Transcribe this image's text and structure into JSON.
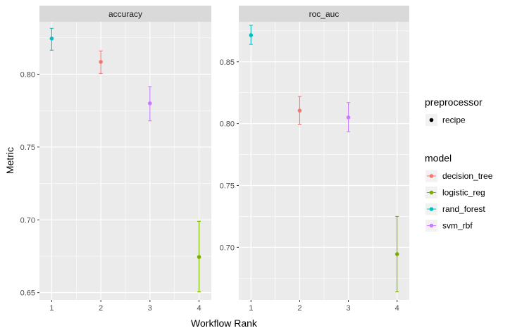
{
  "chart_data": {
    "type": "scatter",
    "xlabel": "Workflow Rank",
    "ylabel": "Metric",
    "facets": [
      {
        "name": "accuracy",
        "x_ticks": [
          "1",
          "2",
          "3",
          "4"
        ],
        "y_ticks": [
          "0.65",
          "0.70",
          "0.75",
          "0.80"
        ],
        "ylim": [
          0.645,
          0.836
        ],
        "points": [
          {
            "rank": 1,
            "model": "rand_forest",
            "mean": 0.8245,
            "lower": 0.8165,
            "upper": 0.8315
          },
          {
            "rank": 2,
            "model": "decision_tree",
            "mean": 0.8085,
            "lower": 0.8005,
            "upper": 0.816
          },
          {
            "rank": 3,
            "model": "svm_rbf",
            "mean": 0.78,
            "lower": 0.768,
            "upper": 0.7915
          },
          {
            "rank": 4,
            "model": "logistic_reg",
            "mean": 0.6745,
            "lower": 0.6505,
            "upper": 0.699
          }
        ]
      },
      {
        "name": "roc_auc",
        "x_ticks": [
          "1",
          "2",
          "3",
          "4"
        ],
        "y_ticks": [
          "0.70",
          "0.75",
          "0.80",
          "0.85"
        ],
        "ylim": [
          0.6575,
          0.8823
        ],
        "points": [
          {
            "rank": 1,
            "model": "rand_forest",
            "mean": 0.8715,
            "lower": 0.864,
            "upper": 0.8795
          },
          {
            "rank": 2,
            "model": "decision_tree",
            "mean": 0.8105,
            "lower": 0.7995,
            "upper": 0.822
          },
          {
            "rank": 3,
            "model": "svm_rbf",
            "mean": 0.805,
            "lower": 0.7935,
            "upper": 0.817
          },
          {
            "rank": 4,
            "model": "logistic_reg",
            "mean": 0.6945,
            "lower": 0.664,
            "upper": 0.725
          }
        ]
      }
    ],
    "xlim": [
      0.75,
      4.25
    ],
    "legends": [
      {
        "title": "preprocessor",
        "entries": [
          {
            "label": "recipe",
            "color": "#000000",
            "kind": "point"
          }
        ]
      },
      {
        "title": "model",
        "entries": [
          {
            "label": "decision_tree",
            "color": "#F8766D",
            "kind": "pointrange"
          },
          {
            "label": "logistic_reg",
            "color": "#7CAE00",
            "kind": "pointrange"
          },
          {
            "label": "rand_forest",
            "color": "#00BFC4",
            "kind": "pointrange"
          },
          {
            "label": "svm_rbf",
            "color": "#C77CFF",
            "kind": "pointrange"
          }
        ]
      }
    ],
    "colors": {
      "decision_tree": "#F8766D",
      "logistic_reg": "#7CAE00",
      "rand_forest": "#00BFC4",
      "svm_rbf": "#C77CFF"
    },
    "grid": true,
    "legend_position": "right"
  }
}
